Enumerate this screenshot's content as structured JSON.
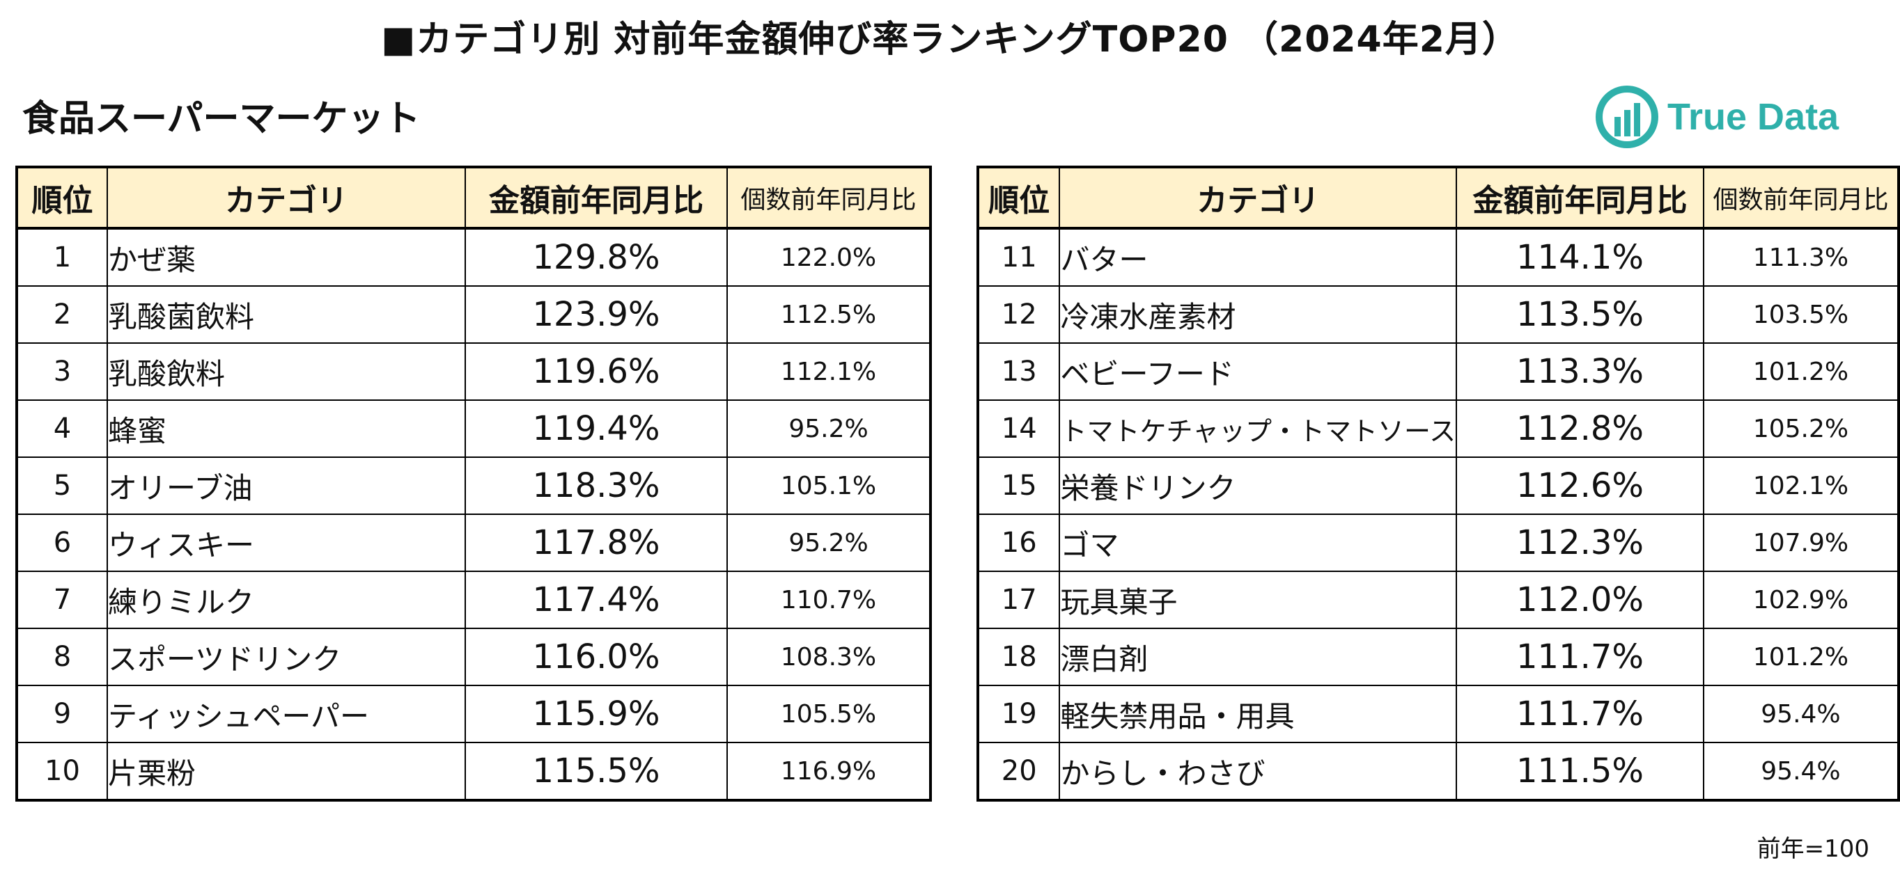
{
  "title": "■カテゴリ別  対前年金額伸び率ランキングTOP20  （2024年2月）",
  "subtitle": "食品スーパーマーケット",
  "logo": {
    "text": "True Data",
    "color": "#2fb0aa"
  },
  "headers": {
    "rank": "順位",
    "category": "カテゴリ",
    "amount_yoy": "金額前年同月比",
    "count_yoy": "個数前年同月比"
  },
  "colors": {
    "header_bg": "#fff2cc",
    "border": "#000000"
  },
  "rows_left": [
    {
      "rank": "1",
      "category": "かぜ薬",
      "amount": "129.8%",
      "count": "122.0%"
    },
    {
      "rank": "2",
      "category": "乳酸菌飲料",
      "amount": "123.9%",
      "count": "112.5%"
    },
    {
      "rank": "3",
      "category": "乳酸飲料",
      "amount": "119.6%",
      "count": "112.1%"
    },
    {
      "rank": "4",
      "category": "蜂蜜",
      "amount": "119.4%",
      "count": "95.2%"
    },
    {
      "rank": "5",
      "category": "オリーブ油",
      "amount": "118.3%",
      "count": "105.1%"
    },
    {
      "rank": "6",
      "category": "ウィスキー",
      "amount": "117.8%",
      "count": "95.2%"
    },
    {
      "rank": "7",
      "category": "練りミルク",
      "amount": "117.4%",
      "count": "110.7%"
    },
    {
      "rank": "8",
      "category": "スポーツドリンク",
      "amount": "116.0%",
      "count": "108.3%"
    },
    {
      "rank": "9",
      "category": "ティッシュペーパー",
      "amount": "115.9%",
      "count": "105.5%"
    },
    {
      "rank": "10",
      "category": "片栗粉",
      "amount": "115.5%",
      "count": "116.9%"
    }
  ],
  "rows_right": [
    {
      "rank": "11",
      "category": "バター",
      "amount": "114.1%",
      "count": "111.3%"
    },
    {
      "rank": "12",
      "category": "冷凍水産素材",
      "amount": "113.5%",
      "count": "103.5%"
    },
    {
      "rank": "13",
      "category": "ベビーフード",
      "amount": "113.3%",
      "count": "101.2%"
    },
    {
      "rank": "14",
      "category": "トマトケチャップ・トマトソース",
      "amount": "112.8%",
      "count": "105.2%"
    },
    {
      "rank": "15",
      "category": "栄養ドリンク",
      "amount": "112.6%",
      "count": "102.1%"
    },
    {
      "rank": "16",
      "category": "ゴマ",
      "amount": "112.3%",
      "count": "107.9%"
    },
    {
      "rank": "17",
      "category": "玩具菓子",
      "amount": "112.0%",
      "count": "102.9%"
    },
    {
      "rank": "18",
      "category": "漂白剤",
      "amount": "111.7%",
      "count": "101.2%"
    },
    {
      "rank": "19",
      "category": "軽失禁用品・用具",
      "amount": "111.7%",
      "count": "95.4%"
    },
    {
      "rank": "20",
      "category": "からし・わさび",
      "amount": "111.5%",
      "count": "95.4%"
    }
  ],
  "note": "前年=100"
}
